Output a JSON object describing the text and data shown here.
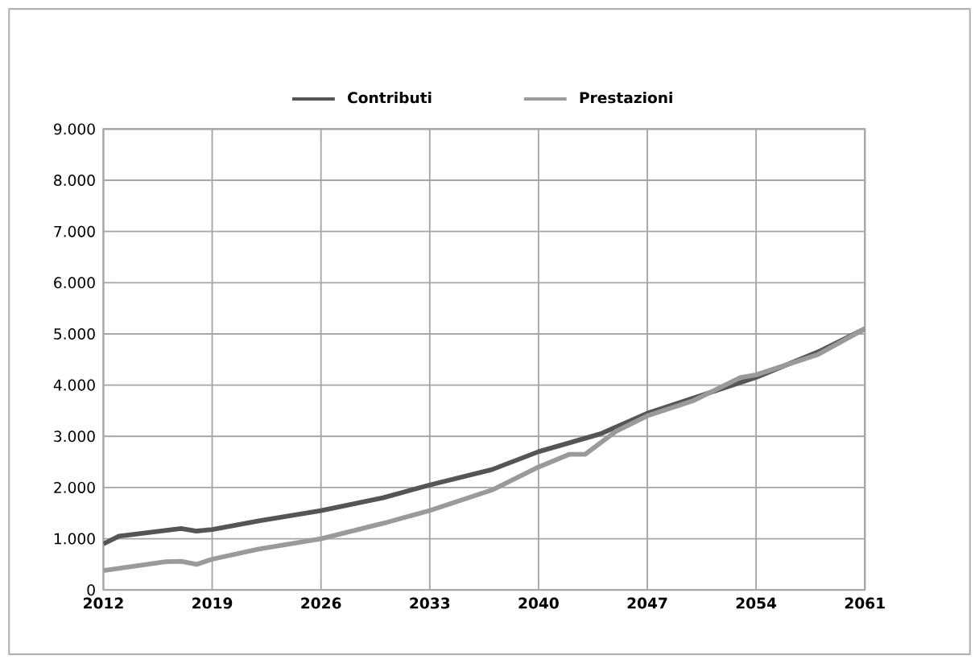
{
  "chart_data": {
    "type": "line",
    "series": [
      {
        "name": "Contributi",
        "color": "#555555",
        "x": [
          2012,
          2013,
          2017,
          2018,
          2019,
          2022,
          2026,
          2030,
          2033,
          2037,
          2040,
          2044,
          2047,
          2050,
          2054,
          2058,
          2061
        ],
        "values": [
          900,
          1050,
          1200,
          1150,
          1180,
          1350,
          1550,
          1800,
          2050,
          2350,
          2700,
          3050,
          3450,
          3750,
          4150,
          4650,
          5100
        ]
      },
      {
        "name": "Prestazioni",
        "color": "#9a9a9a",
        "x": [
          2012,
          2016,
          2017,
          2018,
          2019,
          2022,
          2026,
          2030,
          2033,
          2037,
          2040,
          2042,
          2043,
          2045,
          2047,
          2050,
          2053,
          2054,
          2058,
          2061
        ],
        "values": [
          380,
          550,
          560,
          500,
          600,
          800,
          1000,
          1300,
          1550,
          1950,
          2400,
          2650,
          2650,
          3100,
          3400,
          3700,
          4150,
          4200,
          4600,
          5100
        ]
      }
    ],
    "xlim": [
      2012,
      2061
    ],
    "xticks": [
      2012,
      2019,
      2026,
      2033,
      2040,
      2047,
      2054,
      2061
    ],
    "ylim": [
      0,
      9000
    ],
    "yticks": [
      {
        "value": 0,
        "label": "0"
      },
      {
        "value": 1000,
        "label": "1.000"
      },
      {
        "value": 2000,
        "label": "2.000"
      },
      {
        "value": 3000,
        "label": "3.000"
      },
      {
        "value": 4000,
        "label": "4.000"
      },
      {
        "value": 5000,
        "label": "5.000"
      },
      {
        "value": 6000,
        "label": "6.000"
      },
      {
        "value": 7000,
        "label": "7.000"
      },
      {
        "value": 8000,
        "label": "8.000"
      },
      {
        "value": 9000,
        "label": "9.000"
      }
    ],
    "grid": true,
    "legend": "top",
    "marker": "none",
    "line_style": "solid"
  }
}
